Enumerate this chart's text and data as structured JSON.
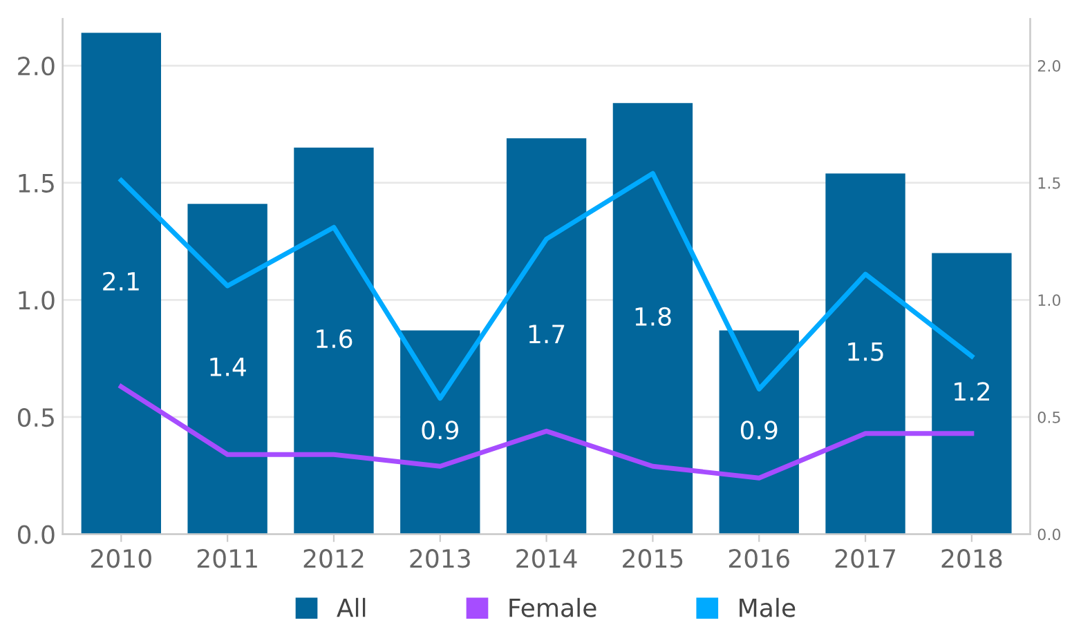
{
  "chart_data": {
    "type": "bar",
    "categories": [
      "2010",
      "2011",
      "2012",
      "2013",
      "2014",
      "2015",
      "2016",
      "2017",
      "2018"
    ],
    "series": [
      {
        "name": "All",
        "color": "#02669b",
        "values": [
          2.14,
          1.41,
          1.65,
          0.87,
          1.69,
          1.84,
          0.87,
          1.54,
          1.2
        ],
        "value_labels": [
          "2.1",
          "1.4",
          "1.6",
          "0.9",
          "1.7",
          "1.8",
          "0.9",
          "1.5",
          "1.2"
        ]
      },
      {
        "name": "Female",
        "type": "line",
        "axis": "y2",
        "color": "#a64dff",
        "values": [
          0.63,
          0.34,
          0.34,
          0.29,
          0.44,
          0.29,
          0.24,
          0.43,
          0.43
        ]
      },
      {
        "name": "Male",
        "type": "line",
        "axis": "y2",
        "color": "#00aaff",
        "values": [
          1.51,
          1.06,
          1.31,
          0.58,
          1.26,
          1.54,
          0.62,
          1.11,
          0.76
        ]
      }
    ],
    "ylim": [
      0,
      2.2
    ],
    "yticks": [
      {
        "value": 0,
        "label": "0.0"
      },
      0.5,
      {
        "value": 1,
        "label": "1.0"
      },
      1.5,
      {
        "value": 2,
        "label": "2.0"
      }
    ],
    "y2lim": [
      0,
      2.2
    ],
    "y2ticks": [
      {
        "value": 0,
        "label": "0.0"
      },
      0.5,
      {
        "value": 1,
        "label": "1.0"
      },
      1.5,
      {
        "value": 2,
        "label": "2.0"
      }
    ],
    "grid": "y",
    "legend": "bottom",
    "marker": "none",
    "line_style": "solid"
  }
}
